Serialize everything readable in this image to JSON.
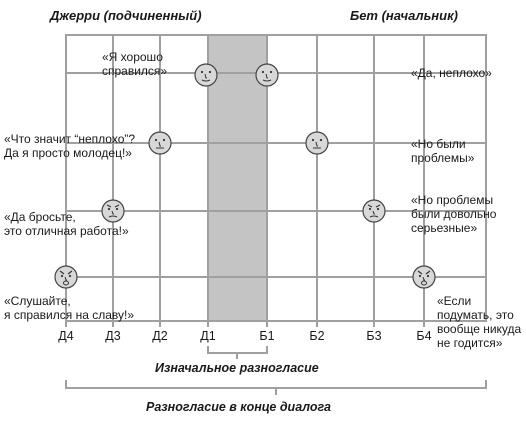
{
  "headers": {
    "left": "Джерри (подчиненный)",
    "right": "Бет (начальник)"
  },
  "axis": {
    "labels": [
      "Д4",
      "Д3",
      "Д2",
      "Д1",
      "Б1",
      "Б2",
      "Б3",
      "Б4"
    ]
  },
  "jerry_quotes": [
    "«Я хорошо\nсправился»",
    "«Что значит “неплохо”?\nДа я просто молодец!»",
    "«Да бросьте,\nэто отличная работа!»",
    "«Слушайте,\nя справился на славу!»"
  ],
  "beth_quotes": [
    "«Да, неплохо»",
    "«Но были\nпроблемы»",
    "«Но проблемы\nбыли довольно\nсерьезные»",
    "«Если\nподумать, это\nвообще никуда\nне годится»"
  ],
  "captions": {
    "initial": "Изначальное разногласие",
    "final": "Разногласие в конце диалога"
  },
  "colors": {
    "grid": "#a0a0a0",
    "band": "#c4c4c4",
    "face": "#d8d8d8"
  }
}
